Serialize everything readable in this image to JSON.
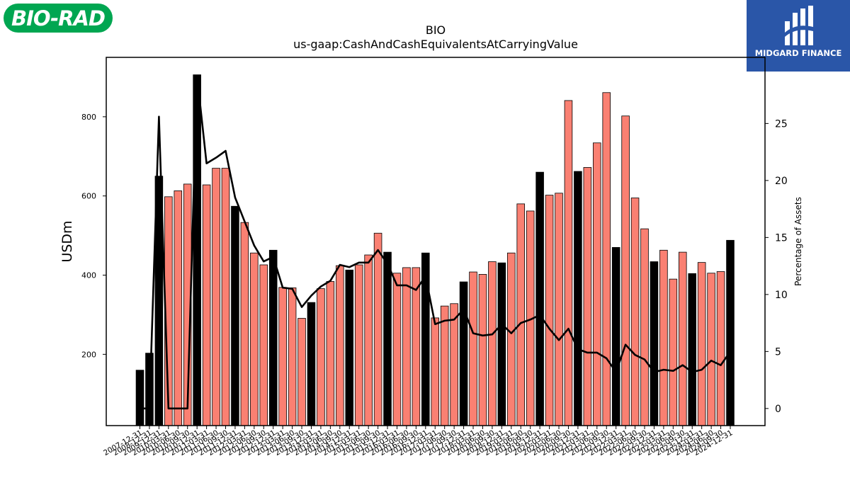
{
  "logos": {
    "left": {
      "text": "BIO-RAD",
      "color": "#00a651"
    },
    "right": {
      "text": "MIDGARD FINANCE",
      "color": "#2a56a8"
    }
  },
  "colors": {
    "quarter": "#fa8072",
    "annual": "#000000",
    "line": "#000000",
    "edge": "#000000"
  },
  "chart_data": {
    "type": "bar",
    "title": "BIO",
    "subtitle": "us-gaap:CashAndCashEquivalentsAtCarryingValue",
    "ylabel": "USDm",
    "y2label": "Percentage of Assets",
    "ylim": [
      20,
      950
    ],
    "y2lim": [
      -1.5,
      30.8
    ],
    "yticks": [
      200,
      400,
      600,
      800
    ],
    "y2ticks": [
      0,
      5,
      10,
      15,
      20,
      25
    ],
    "grid": false,
    "legend": "none",
    "categories": [
      "2007-12-31",
      "2008-12-31",
      "2009-12-31",
      "2010-03-31",
      "2010-06-30",
      "2010-09-30",
      "2010-12-31",
      "2011-03-31",
      "2011-06-30",
      "2011-09-30",
      "2011-12-31",
      "2012-03-31",
      "2012-06-30",
      "2012-09-30",
      "2012-12-31",
      "2013-03-31",
      "2013-06-30",
      "2013-09-30",
      "2013-12-31",
      "2014-03-31",
      "2014-06-30",
      "2014-09-30",
      "2014-12-31",
      "2015-03-31",
      "2015-06-30",
      "2015-09-30",
      "2015-12-31",
      "2016-03-31",
      "2016-06-30",
      "2016-09-30",
      "2016-12-31",
      "2017-03-31",
      "2017-06-30",
      "2017-09-30",
      "2017-12-31",
      "2018-03-31",
      "2018-06-30",
      "2018-09-30",
      "2018-12-31",
      "2019-03-31",
      "2019-06-30",
      "2019-09-30",
      "2019-12-31",
      "2020-03-31",
      "2020-06-30",
      "2020-09-30",
      "2020-12-31",
      "2021-03-31",
      "2021-06-30",
      "2021-09-30",
      "2021-12-31",
      "2022-03-31",
      "2022-06-30",
      "2022-09-30",
      "2022-12-31",
      "2023-03-31",
      "2023-06-30",
      "2023-09-30",
      "2023-12-31",
      "2024-03-31",
      "2024-06-30",
      "2024-09-30",
      "2024-12-31"
    ],
    "series": [
      {
        "values": [
          160,
          203,
          650,
          598,
          613,
          630,
          906,
          628,
          670,
          670,
          574,
          533,
          456,
          426,
          463,
          369,
          368,
          291,
          331,
          366,
          384,
          424,
          413,
          426,
          451,
          506,
          458,
          405,
          419,
          419,
          456,
          292,
          322,
          328,
          383,
          408,
          402,
          434,
          431,
          456,
          580,
          562,
          660,
          602,
          607,
          841,
          662,
          672,
          734,
          861,
          470,
          802,
          595,
          517,
          434,
          463,
          390,
          458,
          404,
          432,
          405,
          409,
          488
        ]
      },
      {
        "values": [
          0,
          0,
          25.6,
          0,
          0,
          0,
          29.2,
          21.5,
          22.0,
          22.6,
          18.5,
          16.4,
          14.3,
          12.9,
          13.3,
          10.6,
          10.5,
          8.9,
          9.9,
          10.7,
          11.2,
          12.6,
          12.4,
          12.8,
          12.8,
          13.9,
          12.7,
          10.8,
          10.8,
          10.4,
          11.6,
          7.4,
          7.7,
          7.8,
          8.7,
          6.6,
          6.4,
          6.5,
          7.4,
          6.6,
          7.5,
          7.8,
          8.2,
          7.0,
          6.0,
          7.0,
          5.2,
          4.9,
          4.9,
          4.4,
          3.2,
          5.6,
          4.7,
          4.3,
          3.2,
          3.4,
          3.3,
          3.8,
          3.2,
          3.4,
          4.2,
          3.8,
          5.0
        ]
      }
    ],
    "annual_flags": [
      1,
      1,
      1,
      0,
      0,
      0,
      1,
      0,
      0,
      0,
      1,
      0,
      0,
      0,
      1,
      0,
      0,
      0,
      1,
      0,
      0,
      0,
      1,
      0,
      0,
      0,
      1,
      0,
      0,
      0,
      1,
      0,
      0,
      0,
      1,
      0,
      0,
      0,
      1,
      0,
      0,
      0,
      1,
      0,
      0,
      0,
      1,
      0,
      0,
      0,
      1,
      0,
      0,
      0,
      1,
      0,
      0,
      0,
      1,
      0,
      0,
      0,
      1
    ]
  }
}
